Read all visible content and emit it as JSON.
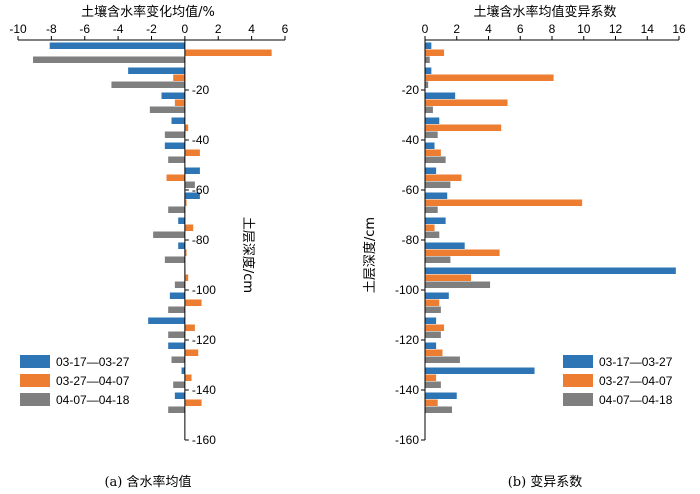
{
  "colors": {
    "s1": "#2E75B6",
    "s2": "#ED7D31",
    "s3": "#7F7F7F"
  },
  "chart_data": [
    {
      "type": "bar",
      "orientation": "horizontal",
      "title": "土壤含水率变化均值/%",
      "ylabel": "土层深度/cm",
      "caption": "(a) 含水率均值",
      "xlim": [
        -10,
        6
      ],
      "ylim": [
        0,
        -160
      ],
      "xticks": [
        "-10",
        "-8",
        "-6",
        "-4",
        "-2",
        "0",
        "2",
        "4",
        "6"
      ],
      "yticks": [
        "-20",
        "-40",
        "-60",
        "-80",
        "-100",
        "-120",
        "-140",
        "-160"
      ],
      "legend_position": "bottom-left",
      "depths": [
        -5,
        -15,
        -25,
        -35,
        -45,
        -55,
        -65,
        -75,
        -85,
        -95,
        -105,
        -115,
        -125,
        -135,
        -145
      ],
      "series": [
        {
          "name": "03-17—03-27",
          "values": [
            -8.1,
            -3.4,
            -1.4,
            -0.8,
            -1.2,
            0.9,
            0.9,
            -0.4,
            -0.4,
            0.0,
            -0.9,
            -2.2,
            -1.0,
            -0.2,
            -0.6
          ]
        },
        {
          "name": "03-27—04-07",
          "values": [
            5.2,
            -0.7,
            -0.6,
            0.2,
            0.9,
            -1.1,
            0.1,
            0.5,
            0.1,
            0.2,
            1.0,
            0.6,
            0.8,
            0.4,
            1.0
          ]
        },
        {
          "name": "04-07—04-18",
          "values": [
            -9.1,
            -4.4,
            -2.1,
            -1.2,
            -1.0,
            0.6,
            -1.0,
            -1.9,
            -1.2,
            -0.6,
            -1.0,
            -1.0,
            -0.8,
            -0.7,
            -1.0
          ]
        }
      ]
    },
    {
      "type": "bar",
      "orientation": "horizontal",
      "title": "土壤含水率均值变异系数",
      "ylabel": "土层深度/cm",
      "caption": "(b) 变异系数",
      "xlim": [
        0,
        16
      ],
      "ylim": [
        0,
        -160
      ],
      "xticks": [
        "0",
        "2",
        "4",
        "6",
        "8",
        "10",
        "12",
        "14",
        "16"
      ],
      "yticks": [
        "-20",
        "-40",
        "-60",
        "-80",
        "-100",
        "-120",
        "-140",
        "-160"
      ],
      "legend_position": "bottom-right",
      "depths": [
        -5,
        -15,
        -25,
        -35,
        -45,
        -55,
        -65,
        -75,
        -85,
        -95,
        -105,
        -115,
        -125,
        -135,
        -145
      ],
      "series": [
        {
          "name": "03-17—03-27",
          "values": [
            0.4,
            0.4,
            1.9,
            0.9,
            0.6,
            0.7,
            1.4,
            1.3,
            2.5,
            15.8,
            1.5,
            0.7,
            0.7,
            6.9,
            2.0
          ]
        },
        {
          "name": "03-27—04-07",
          "values": [
            1.2,
            8.1,
            5.2,
            4.8,
            1.0,
            2.3,
            9.9,
            0.6,
            4.7,
            2.9,
            0.9,
            1.2,
            1.1,
            0.7,
            0.8
          ]
        },
        {
          "name": "04-07—04-18",
          "values": [
            0.3,
            0.2,
            0.5,
            0.8,
            1.3,
            1.6,
            0.8,
            0.9,
            1.6,
            4.1,
            1.0,
            1.0,
            2.2,
            1.0,
            1.7
          ]
        }
      ]
    }
  ]
}
